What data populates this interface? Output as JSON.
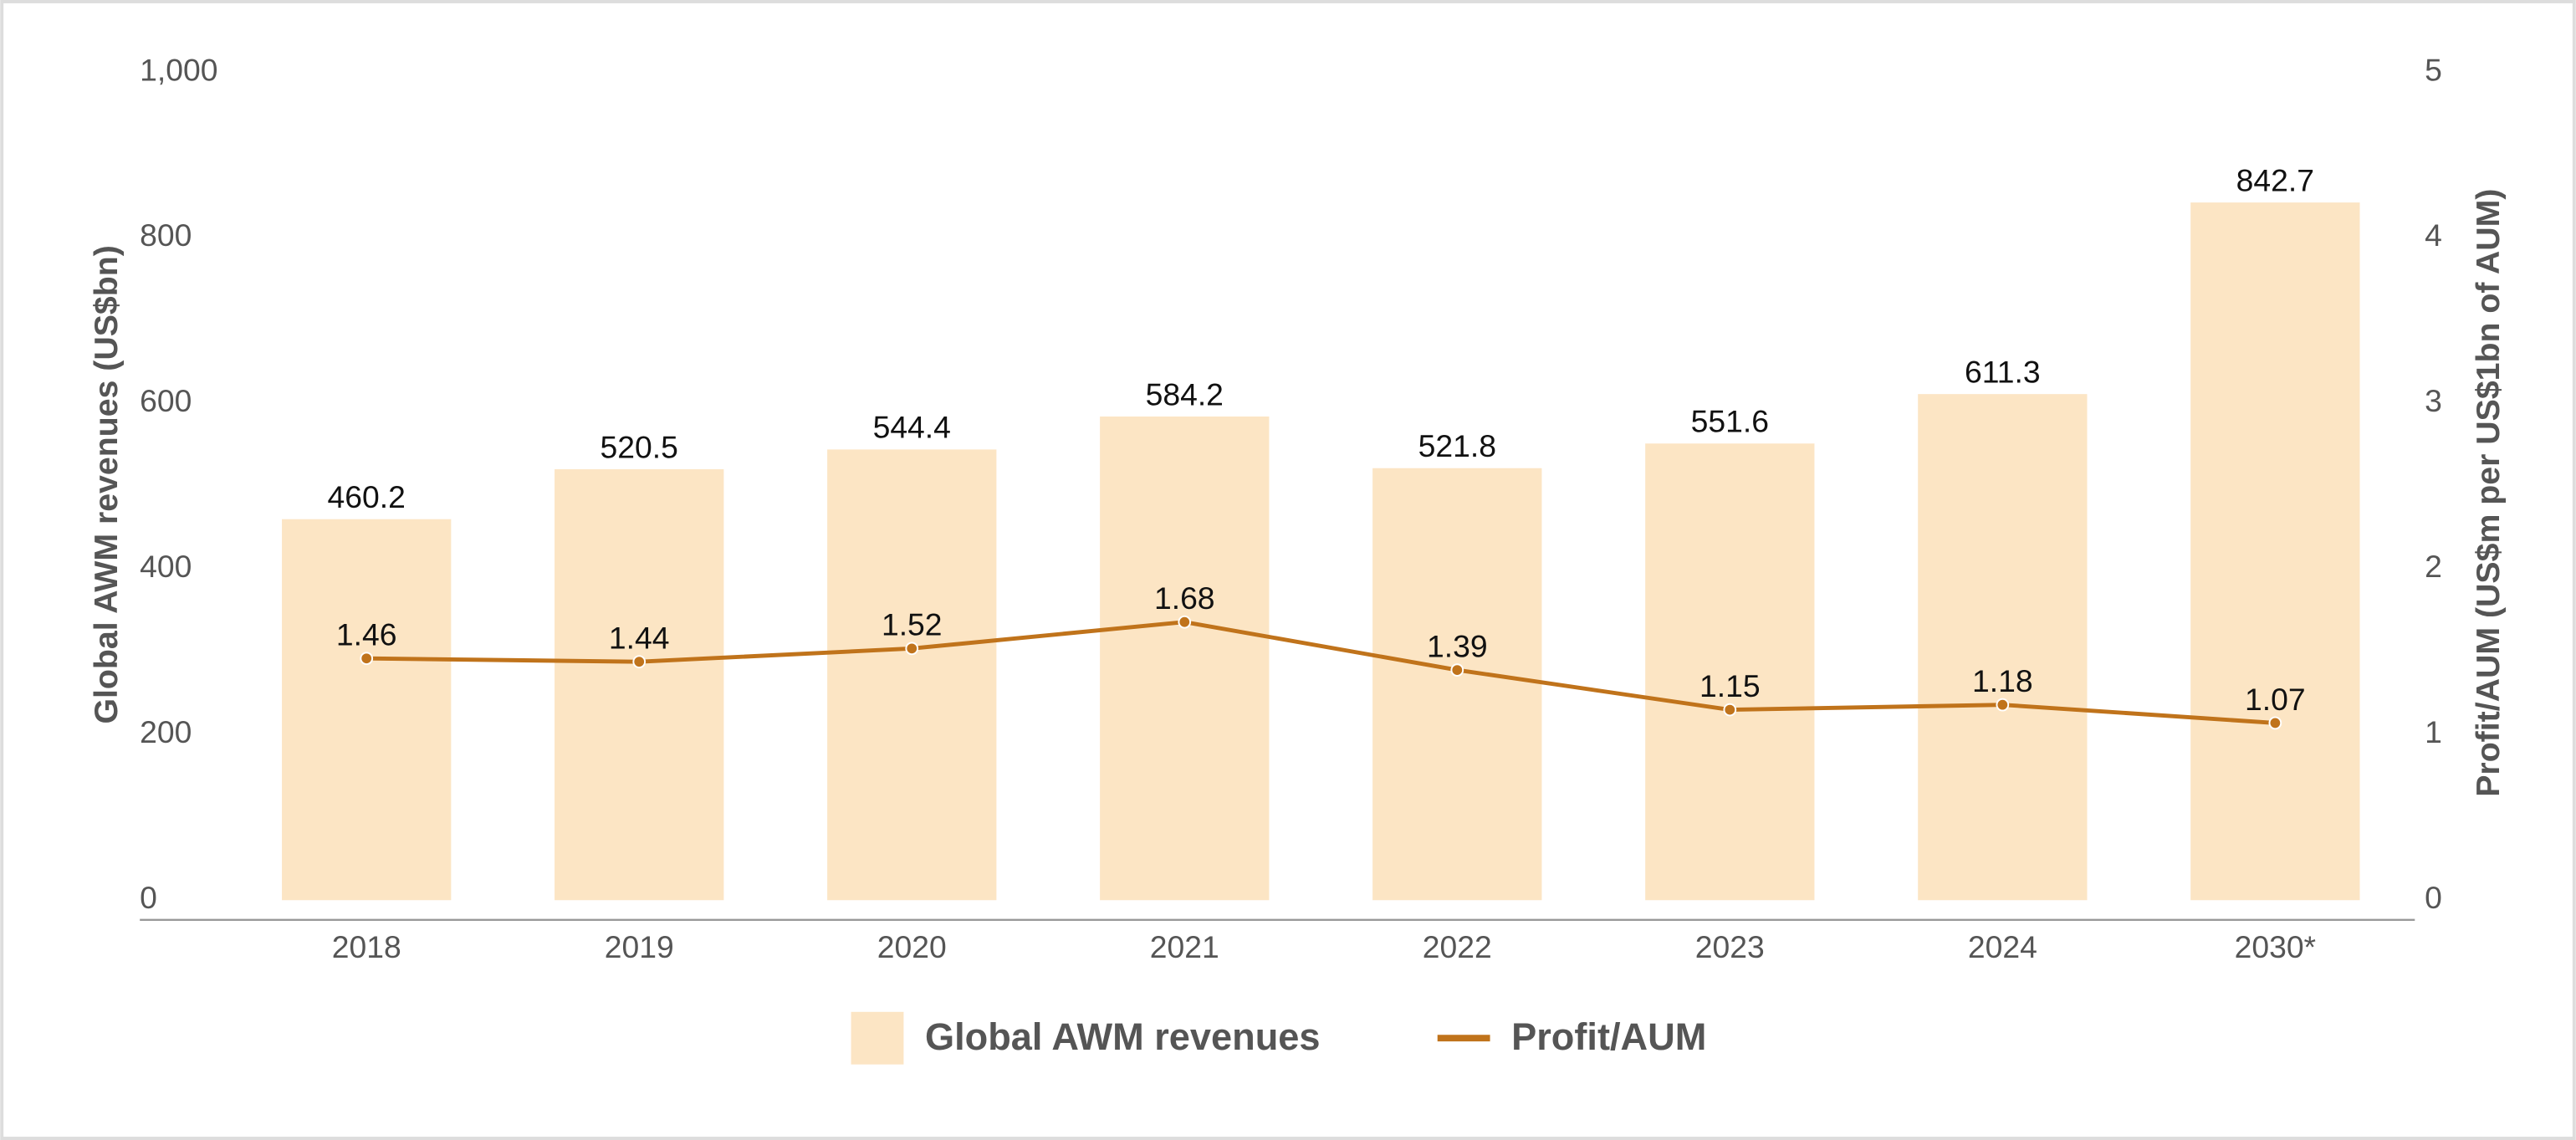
{
  "chart_data": {
    "type": "bar",
    "categories": [
      "2018",
      "2019",
      "2020",
      "2021",
      "2022",
      "2023",
      "2024",
      "2030*"
    ],
    "y_label": "Global AWM revenues (US$bn)",
    "y2_label": "Profit/AUM (US$m per US$1bn of AUM)",
    "series": [
      {
        "name": "Global AWM revenues",
        "type": "bar",
        "color": "#fce5c4",
        "values": [
          460.2,
          520.5,
          544.4,
          584.2,
          521.8,
          551.6,
          611.3,
          842.7
        ]
      },
      {
        "name": "Profit/AUM",
        "type": "line",
        "axis": "y2",
        "color": "#c0731b",
        "values": [
          1.46,
          1.44,
          1.52,
          1.68,
          1.39,
          1.15,
          1.18,
          1.07
        ]
      }
    ],
    "ylim": [
      0,
      1000
    ],
    "yticks": [
      0,
      200,
      400,
      600,
      800,
      {
        "value": 1000,
        "label": "1,000"
      }
    ],
    "y2lim": [
      0,
      5
    ],
    "y2ticks": [
      0,
      1,
      2,
      3,
      4,
      5
    ],
    "grid": false
  }
}
